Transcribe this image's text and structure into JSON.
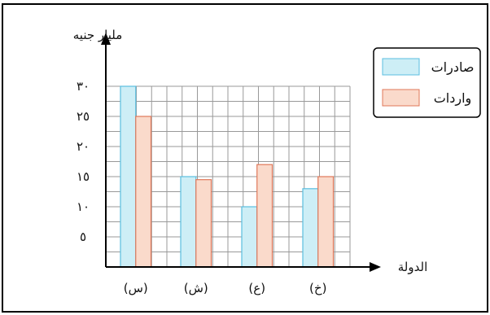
{
  "chart_data": {
    "type": "bar",
    "categories": [
      "(س)",
      "(ش)",
      "(ع)",
      "(خ)"
    ],
    "series": [
      {
        "name": "صادرات",
        "values": [
          30,
          15,
          10,
          13
        ],
        "color": "#cdeef6",
        "stroke": "#5bbfe0"
      },
      {
        "name": "واردات",
        "values": [
          25,
          14.5,
          17,
          15
        ],
        "color": "#fadacb",
        "stroke": "#e0785a"
      }
    ],
    "ylabel": "مليار جنيه",
    "xlabel": "الدولة",
    "ylim": [
      0,
      30
    ],
    "yticks": [
      {
        "value": 5,
        "label": "٥"
      },
      {
        "value": 10,
        "label": "١٠"
      },
      {
        "value": 15,
        "label": "١٥"
      },
      {
        "value": 20,
        "label": "٢٠"
      },
      {
        "value": 25,
        "label": "٢٥"
      },
      {
        "value": 30,
        "label": "٣٠"
      }
    ],
    "grid": true,
    "legend_position": "top-right"
  }
}
